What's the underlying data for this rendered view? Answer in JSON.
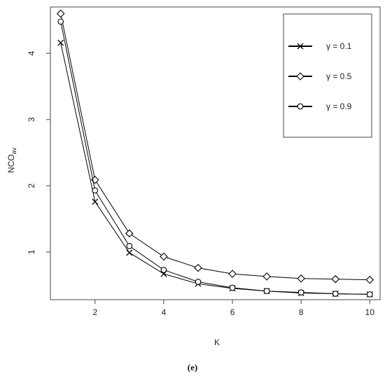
{
  "chart_data": {
    "type": "line",
    "x": [
      1,
      2,
      3,
      4,
      5,
      6,
      7,
      8,
      9,
      10
    ],
    "series": [
      {
        "name": "γ = 0.1",
        "marker": "cross",
        "values": [
          4.16,
          1.76,
          0.99,
          0.67,
          0.52,
          0.45,
          0.41,
          0.38,
          0.37,
          0.36
        ]
      },
      {
        "name": "γ = 0.5",
        "marker": "diamond",
        "values": [
          4.6,
          2.09,
          1.28,
          0.93,
          0.76,
          0.67,
          0.63,
          0.6,
          0.59,
          0.58
        ]
      },
      {
        "name": "γ = 0.9",
        "marker": "circle",
        "values": [
          4.48,
          1.93,
          1.09,
          0.73,
          0.55,
          0.46,
          0.41,
          0.39,
          0.37,
          0.36
        ]
      }
    ],
    "xlabel": "K",
    "ylabel_main": "NCO",
    "ylabel_sub": "av",
    "xlim": [
      0.7,
      10.3
    ],
    "ylim": [
      0.28,
      4.7
    ],
    "xticks": [
      2,
      4,
      6,
      8,
      10
    ],
    "yticks": [
      1,
      2,
      3,
      4
    ],
    "grid": false,
    "legend_position": "top-right",
    "line_color": "#000000"
  },
  "caption": "(e)"
}
